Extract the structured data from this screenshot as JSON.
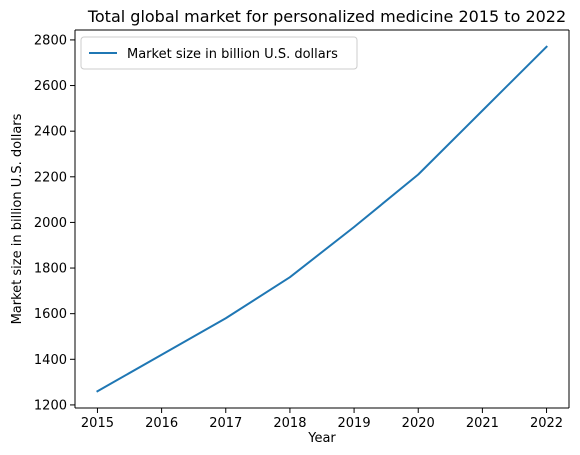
{
  "chart_data": {
    "type": "line",
    "title": "Total global market for personalized medicine 2015 to 2022",
    "xlabel": "Year",
    "ylabel": "Market size in billion U.S. dollars",
    "x": [
      2015,
      2016,
      2017,
      2018,
      2019,
      2020,
      2021,
      2022
    ],
    "series": [
      {
        "name": "Market size in billion U.S. dollars",
        "values": [
          1260,
          1420,
          1580,
          1760,
          1980,
          2210,
          2490,
          2770
        ],
        "color": "#1f77b4"
      }
    ],
    "xticks": [
      "2015",
      "2016",
      "2017",
      "2018",
      "2019",
      "2020",
      "2021",
      "2022"
    ],
    "yticks": [
      "1200",
      "1400",
      "1600",
      "1800",
      "2000",
      "2200",
      "2400",
      "2600",
      "2800"
    ],
    "ylim": [
      1186.5,
      2843.5
    ],
    "xlim": [
      2014.65,
      2022.35
    ],
    "grid": false,
    "legend_position": "upper left"
  }
}
